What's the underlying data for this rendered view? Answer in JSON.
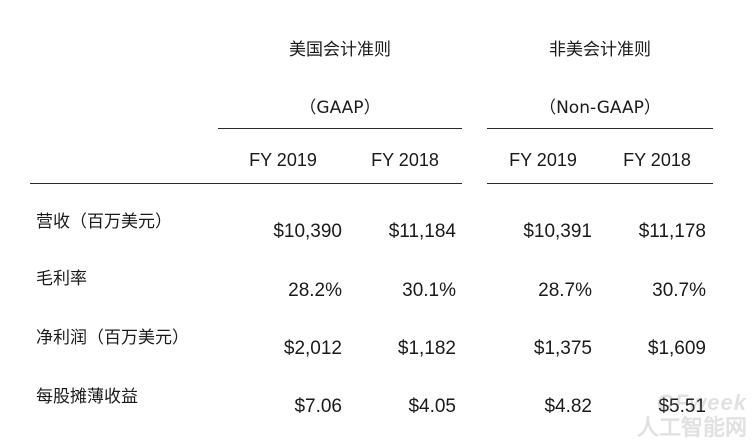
{
  "table": {
    "groups": [
      {
        "title": "美国会计准则",
        "subtitle": "（GAAP）"
      },
      {
        "title": "非美会计准则",
        "subtitle": "（Non-GAAP）"
      }
    ],
    "columns": [
      "FY 2019",
      "FY 2018",
      "FY 2019",
      "FY 2018"
    ],
    "rows": [
      {
        "label": "营收（百万美元）",
        "values": [
          "$10,390",
          "$11,184",
          "$10,391",
          "$11,178"
        ]
      },
      {
        "label": "毛利率",
        "values": [
          "28.2%",
          "30.1%",
          "28.7%",
          "30.7%"
        ]
      },
      {
        "label": "净利润（百万美元）",
        "values": [
          "$2,012",
          "$1,182",
          "$1,375",
          "$1,609"
        ]
      },
      {
        "label": "每股摊薄收益",
        "values": [
          "$7.06",
          "$4.05",
          "$4.82",
          "$5.51"
        ]
      }
    ]
  },
  "watermark": {
    "brand": "OFweek",
    "subtitle": "人工智能网"
  }
}
